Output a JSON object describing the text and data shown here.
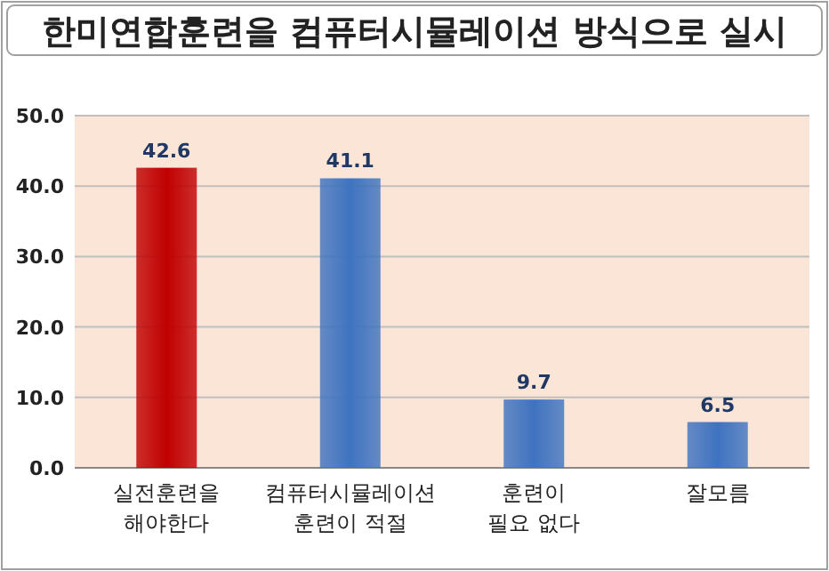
{
  "chart_data": {
    "type": "bar",
    "title": "한미연합훈련을 컴퓨터시뮬레이션 방식으로 실시",
    "categories": [
      "실전훈련을\n해야한다",
      "컴퓨터시뮬레이션\n훈련이 적절",
      "훈련이\n필요 없다",
      "잘모름"
    ],
    "values": [
      42.6,
      41.1,
      9.7,
      6.5
    ],
    "colors": [
      "#c00000",
      "#3f73c0",
      "#3f73c0",
      "#3f73c0"
    ],
    "ylim": [
      0,
      50
    ],
    "yticks": [
      {
        "value": 0,
        "label": "0.0"
      },
      {
        "value": 10,
        "label": "10.0"
      },
      {
        "value": 20,
        "label": "20.0"
      },
      {
        "value": 30,
        "label": "30.0"
      },
      {
        "value": 40,
        "label": "40.0"
      },
      {
        "value": 50,
        "label": "50.0"
      }
    ],
    "grid": "y",
    "data_labels": true
  }
}
